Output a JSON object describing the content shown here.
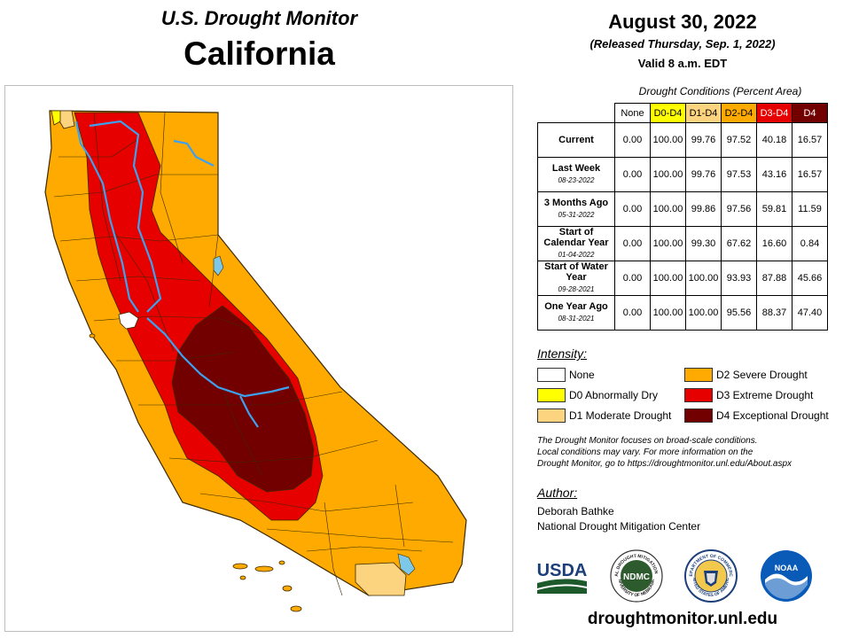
{
  "header": {
    "monitor_title": "U.S. Drought Monitor",
    "state": "California",
    "date": "August 30, 2022",
    "released": "(Released Thursday, Sep. 1, 2022)",
    "valid": "Valid 8 a.m. EDT"
  },
  "table": {
    "caption": "Drought Conditions (Percent Area)",
    "columns": [
      "None",
      "D0-D4",
      "D1-D4",
      "D2-D4",
      "D3-D4",
      "D4"
    ],
    "rows": [
      {
        "label": "Current",
        "date": "",
        "values": [
          "0.00",
          "100.00",
          "99.76",
          "97.52",
          "40.18",
          "16.57"
        ]
      },
      {
        "label": "Last Week",
        "date": "08-23-2022",
        "values": [
          "0.00",
          "100.00",
          "99.76",
          "97.53",
          "43.16",
          "16.57"
        ]
      },
      {
        "label": "3 Months Ago",
        "date": "05-31-2022",
        "values": [
          "0.00",
          "100.00",
          "99.86",
          "97.56",
          "59.81",
          "11.59"
        ]
      },
      {
        "label": "Start of Calendar Year",
        "date": "01-04-2022",
        "values": [
          "0.00",
          "100.00",
          "99.30",
          "67.62",
          "16.60",
          "0.84"
        ]
      },
      {
        "label": "Start of Water Year",
        "date": "09-28-2021",
        "values": [
          "0.00",
          "100.00",
          "100.00",
          "93.93",
          "87.88",
          "45.66"
        ]
      },
      {
        "label": "One Year Ago",
        "date": "08-31-2021",
        "values": [
          "0.00",
          "100.00",
          "100.00",
          "95.56",
          "88.37",
          "47.40"
        ]
      }
    ]
  },
  "legend": {
    "title": "Intensity:",
    "items": [
      {
        "label": "None",
        "color": "#ffffff"
      },
      {
        "label": "D0 Abnormally Dry",
        "color": "#ffff00"
      },
      {
        "label": "D1 Moderate Drought",
        "color": "#fcd37f"
      },
      {
        "label": "D2 Severe Drought",
        "color": "#ffaa00"
      },
      {
        "label": "D3 Extreme Drought",
        "color": "#e60000"
      },
      {
        "label": "D4 Exceptional Drought",
        "color": "#730000"
      }
    ]
  },
  "note": {
    "line1": "The Drought Monitor focuses on broad-scale conditions.",
    "line2": "Local conditions may vary. For more information on the",
    "line3": "Drought Monitor, go to https://droughtmonitor.unl.edu/About.aspx"
  },
  "author": {
    "title": "Author:",
    "name": "Deborah Bathke",
    "org": "National Drought Mitigation Center"
  },
  "logos": {
    "usda": "USDA",
    "ndmc": "NDMC",
    "noaa": "NOAA",
    "ndmc_ring": "NATIONAL DROUGHT MITIGATION CENTER",
    "ndmc_ring_bottom": "UNIVERSITY OF NEBRASKA",
    "commerce_ring": "DEPARTMENT OF COMMERCE",
    "commerce_ring_bottom": "UNITED STATES OF AMERICA"
  },
  "footer": {
    "url": "droughtmonitor.unl.edu"
  },
  "map": {
    "colors": {
      "d0": "#ffff00",
      "d1": "#fcd37f",
      "d2": "#ffaa00",
      "d3": "#e60000",
      "d4": "#730000",
      "river": "#3da1f0",
      "lake": "#7dc8e8",
      "county": "#3a2a00"
    }
  }
}
